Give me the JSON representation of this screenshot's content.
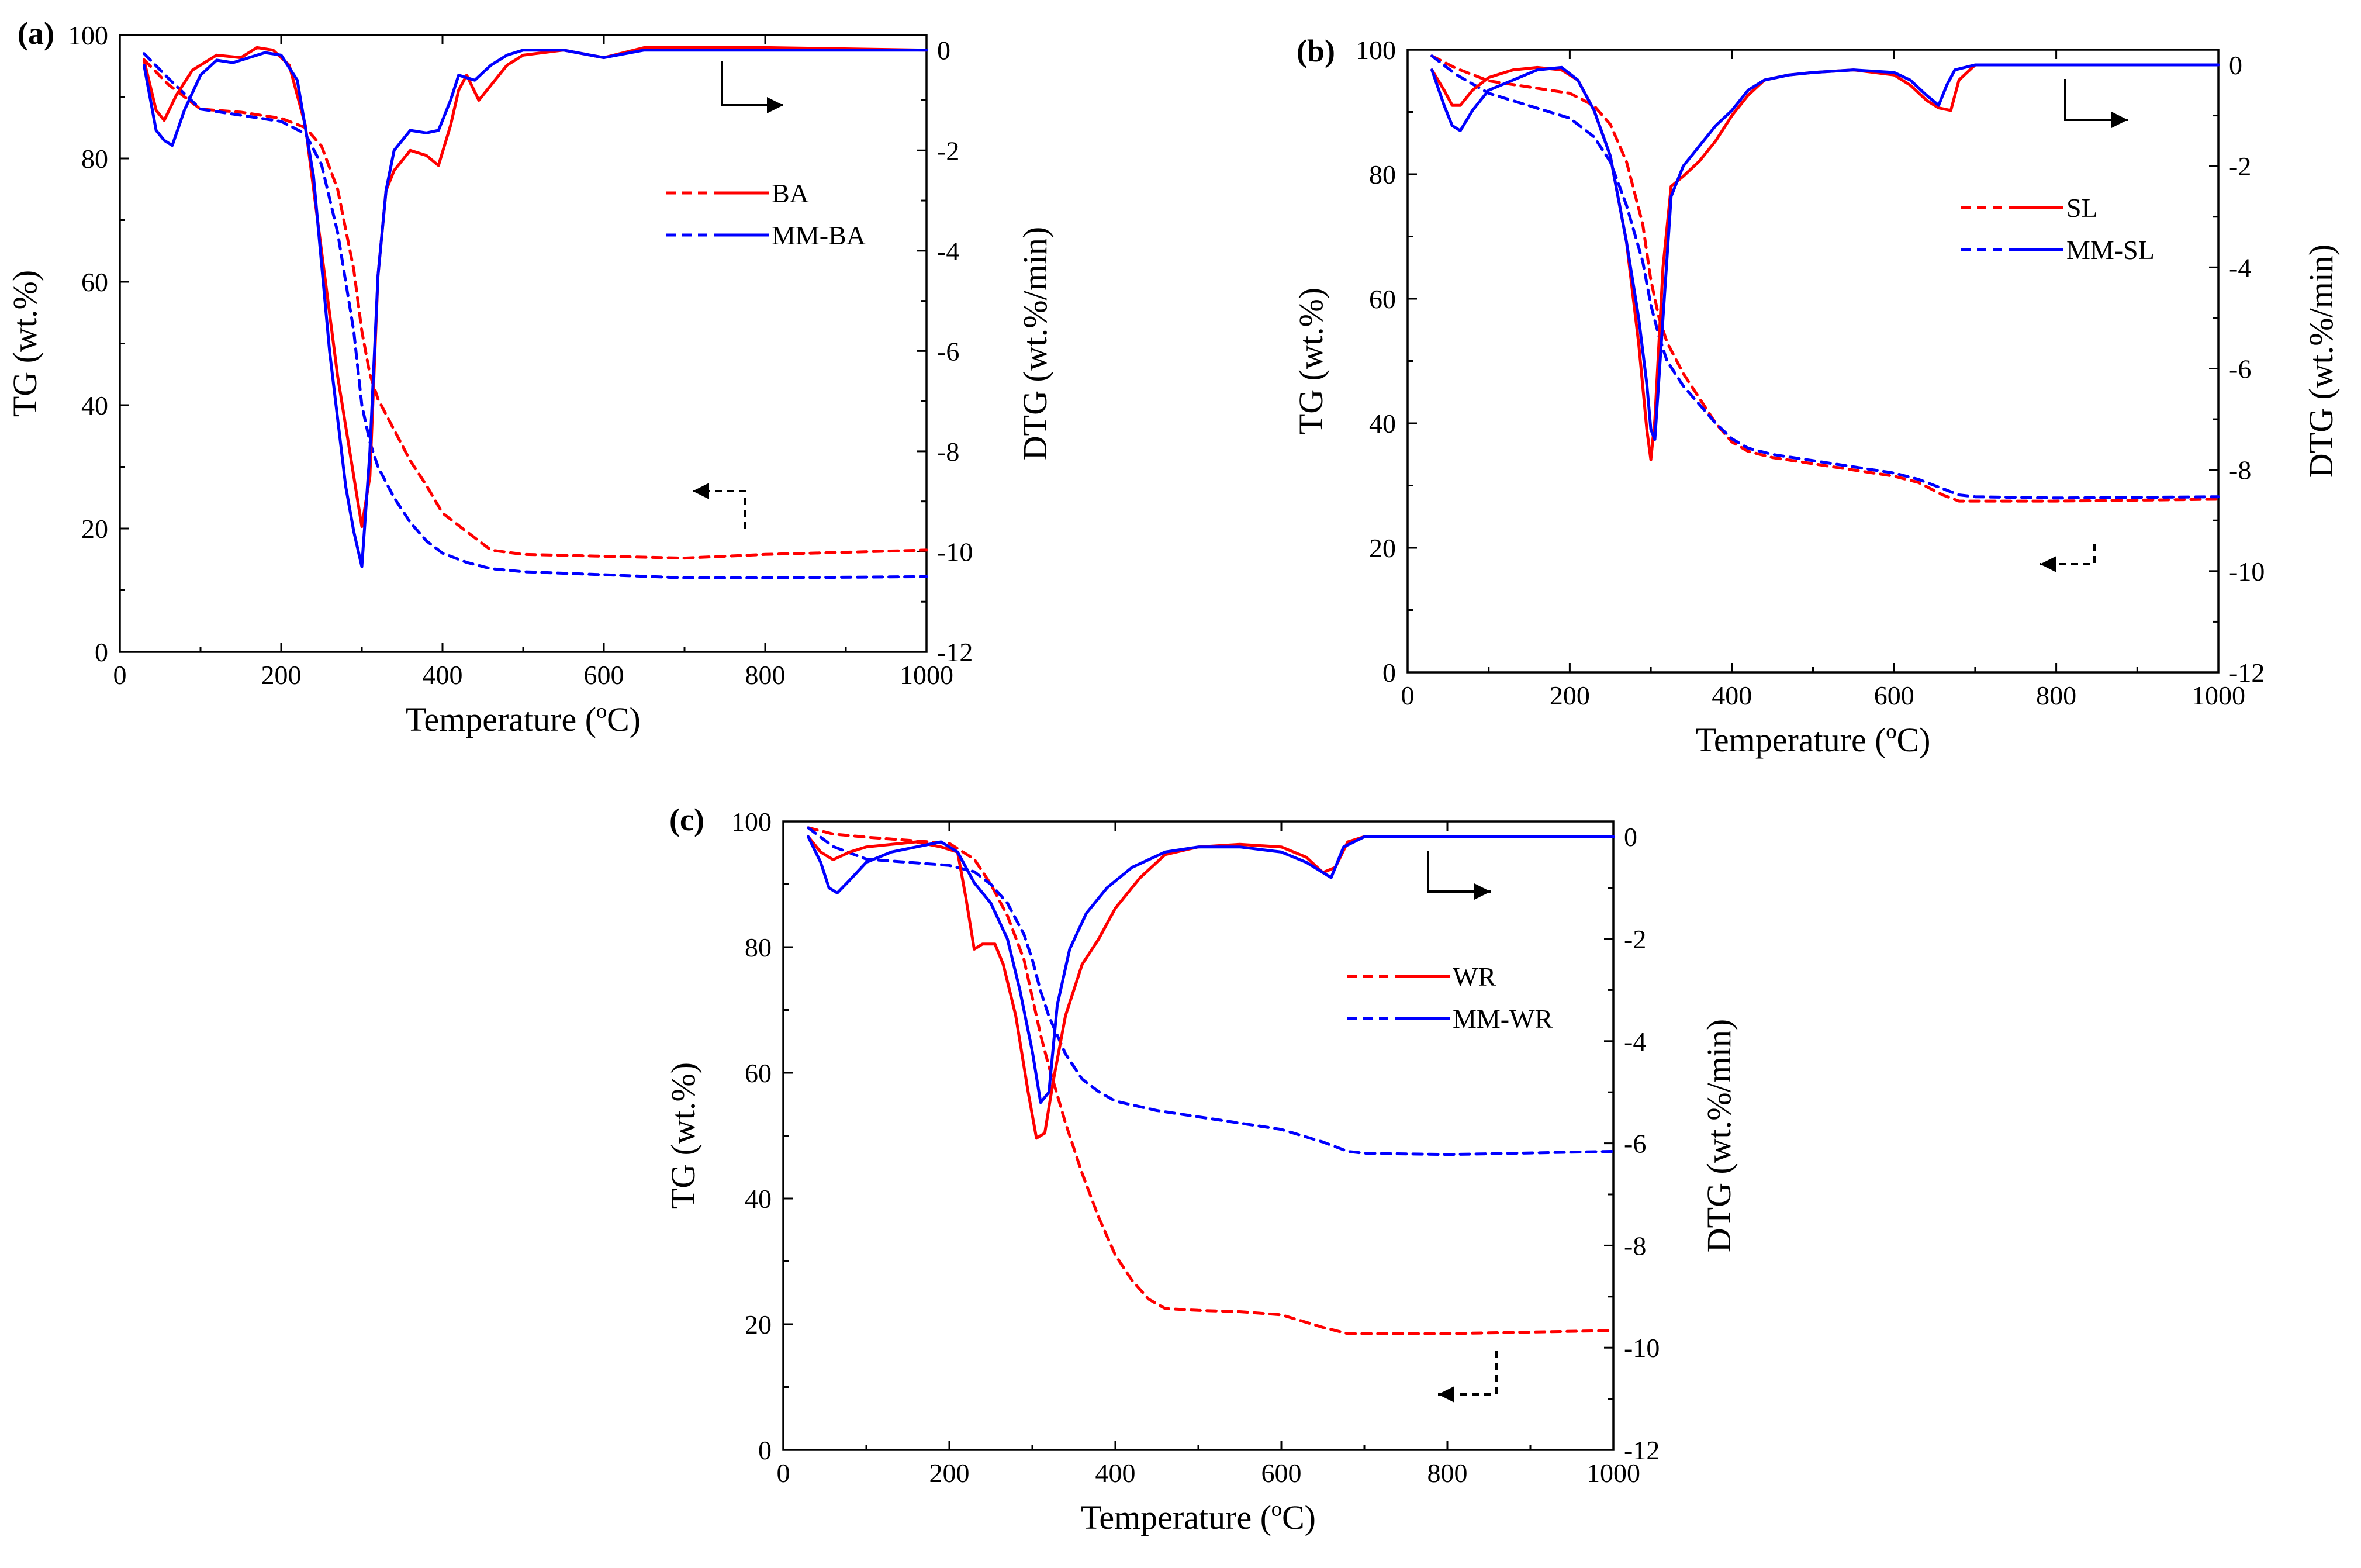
{
  "colors": {
    "red": "#ff0000",
    "blue": "#0000ff",
    "black": "#000000"
  },
  "chart_data": [
    {
      "type": "line",
      "panel_label": "(a)",
      "xlabel": "Temperature (ºC)",
      "ylabel": "TG (wt.%)",
      "y2label": "DTG (wt.%/min)",
      "xlim": [
        0,
        1000
      ],
      "ylim": [
        0,
        100
      ],
      "y2lim": [
        -12,
        0.3
      ],
      "xticks": [
        "0",
        "200",
        "400",
        "600",
        "800",
        "1000"
      ],
      "yticks": [
        "0",
        "20",
        "40",
        "60",
        "80",
        "100"
      ],
      "y2ticks": [
        "-12",
        "-10",
        "-8",
        "-6",
        "-4",
        "-2",
        "0"
      ],
      "legend": [
        {
          "name": "BA",
          "color": "#ff0000"
        },
        {
          "name": "MM-BA",
          "color": "#0000ff"
        }
      ],
      "series": [
        {
          "name": "BA TG",
          "axis": "TG",
          "style": "dashed",
          "color": "#ff0000",
          "x": [
            30,
            60,
            100,
            150,
            200,
            230,
            250,
            270,
            290,
            300,
            310,
            320,
            340,
            360,
            380,
            400,
            430,
            460,
            500,
            600,
            700,
            800,
            1000
          ],
          "y": [
            96,
            92,
            88,
            87.5,
            86.5,
            85,
            82,
            75,
            62,
            52,
            45,
            41,
            36,
            31,
            27,
            22.5,
            19.5,
            16.5,
            15.8,
            15.5,
            15.2,
            15.8,
            16.5
          ]
        },
        {
          "name": "MM-BA TG",
          "axis": "TG",
          "style": "dashed",
          "color": "#0000ff",
          "x": [
            30,
            60,
            100,
            150,
            200,
            230,
            250,
            270,
            290,
            300,
            310,
            320,
            340,
            360,
            380,
            400,
            430,
            460,
            500,
            600,
            700,
            800,
            1000
          ],
          "y": [
            97,
            93,
            88,
            87,
            86,
            84,
            79,
            68,
            52,
            40,
            34,
            30,
            25,
            21,
            18,
            16,
            14.5,
            13.5,
            13,
            12.5,
            12,
            12,
            12.2
          ]
        },
        {
          "name": "BA DTG",
          "axis": "DTG",
          "style": "solid",
          "color": "#ff0000",
          "x": [
            30,
            45,
            55,
            70,
            90,
            120,
            150,
            170,
            190,
            210,
            230,
            250,
            270,
            290,
            300,
            310,
            320,
            330,
            340,
            360,
            380,
            395,
            410,
            420,
            430,
            445,
            460,
            480,
            500,
            550,
            600,
            650,
            700,
            800,
            1000
          ],
          "y": [
            -0.2,
            -1.2,
            -1.4,
            -0.9,
            -0.4,
            -0.1,
            -0.15,
            0.05,
            0,
            -0.3,
            -1.5,
            -4,
            -6.5,
            -8.5,
            -9.5,
            -8.5,
            -4.5,
            -2.8,
            -2.4,
            -2.0,
            -2.1,
            -2.3,
            -1.5,
            -0.8,
            -0.5,
            -1.0,
            -0.7,
            -0.3,
            -0.1,
            0,
            -0.15,
            0.05,
            0.05,
            0.05,
            0
          ]
        },
        {
          "name": "MM-BA DTG",
          "axis": "DTG",
          "style": "solid",
          "color": "#0000ff",
          "x": [
            30,
            45,
            55,
            65,
            80,
            100,
            120,
            140,
            160,
            180,
            200,
            220,
            240,
            260,
            280,
            290,
            300,
            310,
            320,
            330,
            340,
            360,
            380,
            395,
            410,
            420,
            440,
            460,
            480,
            500,
            550,
            600,
            650,
            700,
            800,
            1000
          ],
          "y": [
            -0.3,
            -1.6,
            -1.8,
            -1.9,
            -1.2,
            -0.5,
            -0.2,
            -0.25,
            -0.15,
            -0.05,
            -0.1,
            -0.6,
            -2.5,
            -6,
            -8.7,
            -9.6,
            -10.3,
            -8,
            -4.5,
            -2.8,
            -2.0,
            -1.6,
            -1.65,
            -1.6,
            -1.0,
            -0.5,
            -0.6,
            -0.3,
            -0.1,
            0,
            0,
            -0.15,
            0,
            0,
            0,
            0
          ]
        }
      ]
    },
    {
      "type": "line",
      "panel_label": "(b)",
      "xlabel": "Temperature (ºC)",
      "ylabel": "TG (wt.%)",
      "y2label": "DTG (wt.%/min)",
      "xlim": [
        0,
        1000
      ],
      "ylim": [
        0,
        100
      ],
      "y2lim": [
        -12,
        0.3
      ],
      "xticks": [
        "0",
        "200",
        "400",
        "600",
        "800",
        "1000"
      ],
      "yticks": [
        "0",
        "20",
        "40",
        "60",
        "80",
        "100"
      ],
      "y2ticks": [
        "-12",
        "-10",
        "-8",
        "-6",
        "-4",
        "-2",
        "0"
      ],
      "legend": [
        {
          "name": "SL",
          "color": "#ff0000"
        },
        {
          "name": "MM-SL",
          "color": "#0000ff"
        }
      ],
      "series": [
        {
          "name": "SL TG",
          "axis": "TG",
          "style": "dashed",
          "color": "#ff0000",
          "x": [
            30,
            60,
            100,
            150,
            200,
            230,
            250,
            270,
            290,
            300,
            310,
            320,
            340,
            360,
            380,
            400,
            420,
            450,
            500,
            550,
            600,
            630,
            660,
            680,
            700,
            800,
            1000
          ],
          "y": [
            99,
            97,
            95,
            94,
            93,
            91,
            88,
            82,
            72,
            63,
            57,
            53,
            48,
            44,
            40,
            37,
            35.5,
            34.5,
            33.5,
            32.5,
            31.5,
            30.5,
            28.5,
            27.5,
            27.5,
            27.5,
            27.8
          ]
        },
        {
          "name": "MM-SL TG",
          "axis": "TG",
          "style": "dashed",
          "color": "#0000ff",
          "x": [
            30,
            60,
            100,
            150,
            200,
            230,
            250,
            270,
            290,
            300,
            310,
            320,
            340,
            360,
            380,
            400,
            420,
            450,
            500,
            550,
            600,
            630,
            660,
            680,
            700,
            800,
            1000
          ],
          "y": [
            99,
            96,
            93,
            91,
            89,
            86,
            82,
            75,
            66,
            59,
            54,
            50,
            46,
            43,
            40,
            37.5,
            36,
            35,
            34,
            33,
            32,
            31,
            29.5,
            28.5,
            28.2,
            28,
            28.2
          ]
        },
        {
          "name": "SL DTG",
          "axis": "DTG",
          "style": "solid",
          "color": "#ff0000",
          "x": [
            30,
            45,
            55,
            65,
            80,
            100,
            130,
            160,
            190,
            210,
            230,
            250,
            270,
            285,
            295,
            300,
            305,
            315,
            325,
            340,
            360,
            380,
            400,
            420,
            440,
            470,
            500,
            550,
            600,
            620,
            640,
            655,
            670,
            680,
            700,
            800,
            1000
          ],
          "y": [
            -0.1,
            -0.5,
            -0.8,
            -0.8,
            -0.5,
            -0.25,
            -0.1,
            -0.05,
            -0.1,
            -0.3,
            -0.9,
            -1.8,
            -3.5,
            -5.5,
            -7.2,
            -7.8,
            -7.0,
            -4.0,
            -2.4,
            -2.2,
            -1.9,
            -1.5,
            -1.0,
            -0.6,
            -0.3,
            -0.2,
            -0.15,
            -0.1,
            -0.2,
            -0.4,
            -0.7,
            -0.85,
            -0.9,
            -0.3,
            0,
            0,
            0
          ]
        },
        {
          "name": "MM-SL DTG",
          "axis": "DTG",
          "style": "solid",
          "color": "#0000ff",
          "x": [
            30,
            45,
            55,
            65,
            80,
            100,
            130,
            160,
            190,
            210,
            230,
            250,
            270,
            285,
            295,
            300,
            305,
            315,
            325,
            340,
            360,
            380,
            400,
            420,
            440,
            470,
            500,
            550,
            600,
            620,
            640,
            655,
            665,
            675,
            700,
            800,
            1000
          ],
          "y": [
            -0.1,
            -0.8,
            -1.2,
            -1.3,
            -0.9,
            -0.5,
            -0.3,
            -0.1,
            -0.05,
            -0.3,
            -0.9,
            -1.8,
            -3.5,
            -5,
            -6.3,
            -7.2,
            -7.4,
            -5.0,
            -2.6,
            -2.0,
            -1.6,
            -1.2,
            -0.9,
            -0.5,
            -0.3,
            -0.2,
            -0.15,
            -0.1,
            -0.15,
            -0.3,
            -0.6,
            -0.8,
            -0.4,
            -0.1,
            0,
            0,
            0
          ]
        }
      ]
    },
    {
      "type": "line",
      "panel_label": "(c)",
      "xlabel": "Temperature (ºC)",
      "ylabel": "TG (wt.%)",
      "y2label": "DTG (wt.%/min)",
      "xlim": [
        0,
        1000
      ],
      "ylim": [
        0,
        100
      ],
      "y2lim": [
        -12,
        0.3
      ],
      "xticks": [
        "0",
        "200",
        "400",
        "600",
        "800",
        "1000"
      ],
      "yticks": [
        "0",
        "20",
        "40",
        "60",
        "80",
        "100"
      ],
      "y2ticks": [
        "-12",
        "-10",
        "-8",
        "-6",
        "-4",
        "-2",
        "0"
      ],
      "legend": [
        {
          "name": "WR",
          "color": "#ff0000"
        },
        {
          "name": "MM-WR",
          "color": "#0000ff"
        }
      ],
      "series": [
        {
          "name": "WR TG",
          "axis": "TG",
          "style": "dashed",
          "color": "#ff0000",
          "x": [
            30,
            60,
            100,
            150,
            200,
            230,
            250,
            270,
            290,
            300,
            310,
            320,
            340,
            360,
            380,
            400,
            420,
            440,
            460,
            500,
            550,
            600,
            650,
            680,
            700,
            800,
            1000
          ],
          "y": [
            99,
            98,
            97.5,
            97,
            96.5,
            94,
            90,
            85,
            78,
            72,
            66,
            61,
            52,
            44,
            37,
            31,
            27,
            24,
            22.5,
            22.2,
            22,
            21.5,
            19.5,
            18.5,
            18.5,
            18.5,
            19
          ]
        },
        {
          "name": "MM-WR TG",
          "axis": "TG",
          "style": "dashed",
          "color": "#0000ff",
          "x": [
            30,
            60,
            100,
            150,
            200,
            230,
            250,
            270,
            290,
            300,
            310,
            320,
            340,
            360,
            380,
            400,
            450,
            500,
            550,
            600,
            650,
            680,
            700,
            800,
            1000
          ],
          "y": [
            99,
            96,
            94,
            93.5,
            93,
            92,
            90,
            87,
            82,
            78,
            73,
            69,
            63,
            59,
            57,
            55.5,
            54,
            53,
            52,
            51,
            49,
            47.5,
            47.2,
            47,
            47.5
          ]
        },
        {
          "name": "WR DTG",
          "axis": "DTG",
          "style": "solid",
          "color": "#ff0000",
          "x": [
            30,
            45,
            60,
            80,
            100,
            130,
            160,
            190,
            210,
            220,
            230,
            240,
            255,
            265,
            280,
            295,
            305,
            315,
            325,
            340,
            360,
            380,
            400,
            430,
            460,
            500,
            550,
            600,
            630,
            650,
            665,
            680,
            700,
            800,
            1000
          ],
          "y": [
            0,
            -0.3,
            -0.45,
            -0.3,
            -0.2,
            -0.15,
            -0.1,
            -0.2,
            -0.3,
            -1.2,
            -2.2,
            -2.1,
            -2.1,
            -2.5,
            -3.5,
            -5.0,
            -5.9,
            -5.8,
            -4.8,
            -3.5,
            -2.5,
            -2.0,
            -1.4,
            -0.8,
            -0.35,
            -0.2,
            -0.15,
            -0.2,
            -0.4,
            -0.7,
            -0.6,
            -0.1,
            0,
            0,
            0
          ]
        },
        {
          "name": "MM-WR DTG",
          "axis": "DTG",
          "style": "solid",
          "color": "#0000ff",
          "x": [
            30,
            45,
            55,
            65,
            80,
            100,
            130,
            160,
            190,
            210,
            230,
            250,
            270,
            285,
            300,
            310,
            320,
            330,
            345,
            365,
            390,
            420,
            460,
            500,
            550,
            600,
            630,
            650,
            660,
            675,
            700,
            800,
            1000
          ],
          "y": [
            0,
            -0.5,
            -1.0,
            -1.1,
            -0.85,
            -0.5,
            -0.3,
            -0.2,
            -0.1,
            -0.3,
            -0.9,
            -1.3,
            -2.0,
            -3.0,
            -4.2,
            -5.2,
            -5.0,
            -3.3,
            -2.2,
            -1.5,
            -1.0,
            -0.6,
            -0.3,
            -0.2,
            -0.2,
            -0.3,
            -0.5,
            -0.7,
            -0.8,
            -0.2,
            0,
            0,
            0
          ]
        }
      ]
    }
  ]
}
